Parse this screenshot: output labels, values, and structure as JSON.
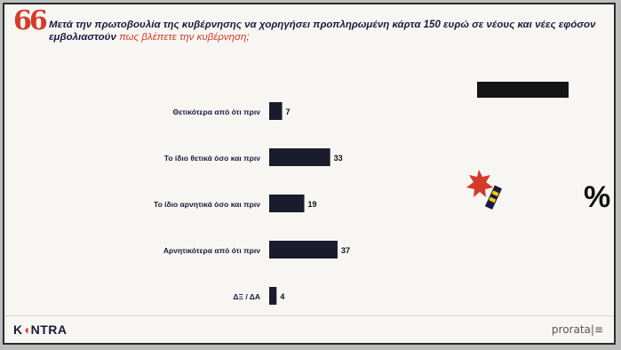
{
  "header": {
    "quote_mark": "66",
    "question_main": "Μετά την πρωτοβουλία της κυβέρνησης να χορηγήσει προπληρωμένη κάρτα 150 ευρώ σε νέους και νέες εφόσον εμβολιαστούν",
    "question_highlight": "πως βλέπετε την κυβέρνηση;"
  },
  "unit_label": "%",
  "chart_data": {
    "type": "bar",
    "orientation": "horizontal",
    "categories": [
      "Θετικότερα από ότι πριν",
      "Το ίδιο θετικά όσο και πριν",
      "Το ίδιο αρνητικά όσο και πριν",
      "Αρνητικότερα από ότι πριν",
      "ΔΞ / ΔΑ"
    ],
    "values": [
      7,
      33,
      19,
      37,
      4
    ],
    "value_labels": [
      "7",
      "33",
      "19",
      "37",
      "4"
    ],
    "xlim": [
      0,
      40
    ],
    "grid": false,
    "bar_color": "#1b1b2e"
  },
  "footer": {
    "brand_before": "K",
    "brand_mark": "◖",
    "brand_after": "NTRA",
    "source": "prorata|≡"
  },
  "colors": {
    "accent": "#d63a2a",
    "text_dark": "#1a1a40"
  }
}
